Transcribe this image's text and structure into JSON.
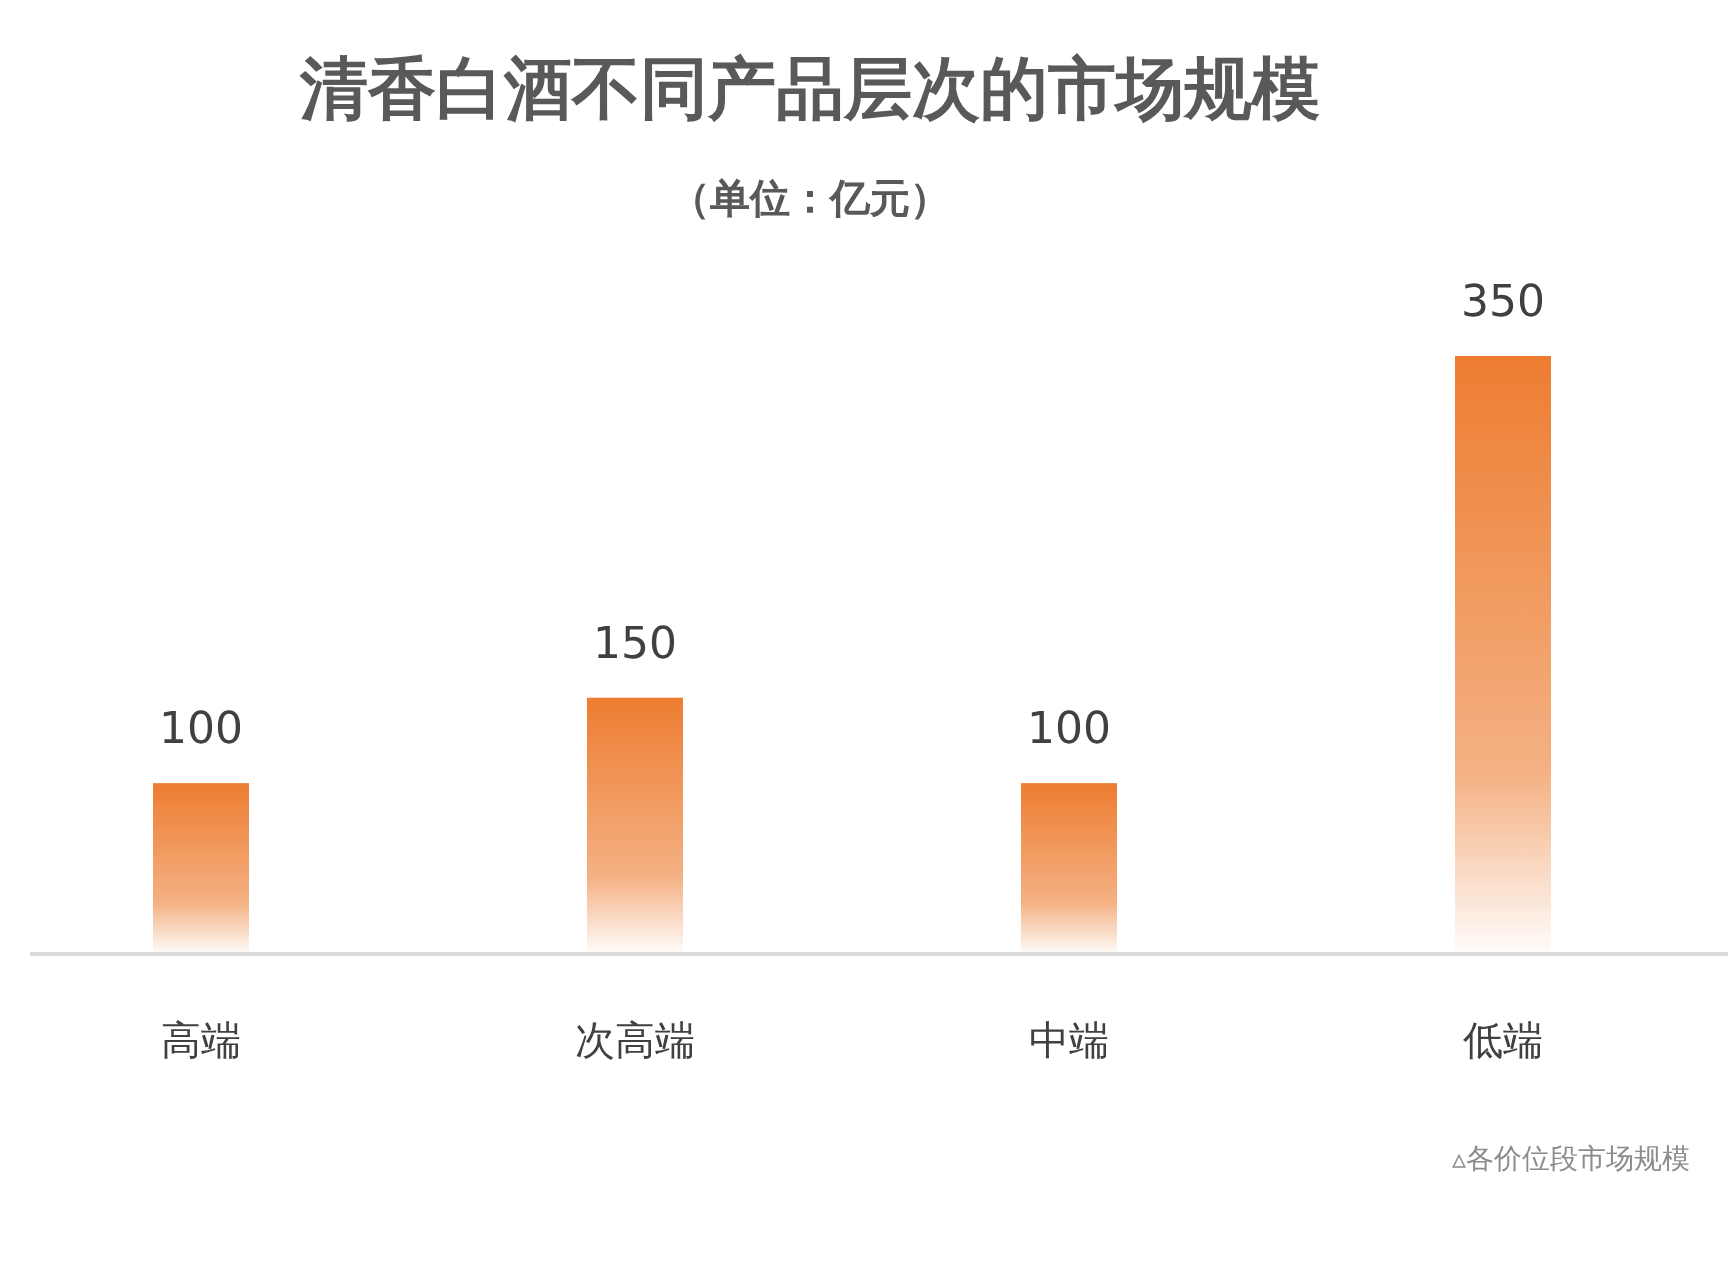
{
  "chart_data": {
    "type": "bar",
    "title": "清香白酒不同产品层次的市场规模",
    "subtitle": "（单位：亿元）",
    "categories": [
      "高端",
      "次高端",
      "中端",
      "低端"
    ],
    "values": [
      100,
      150,
      100,
      350
    ],
    "color": "#ed7d31",
    "data_labels": true,
    "annotations": [
      "▵各价位段市场规模"
    ]
  }
}
